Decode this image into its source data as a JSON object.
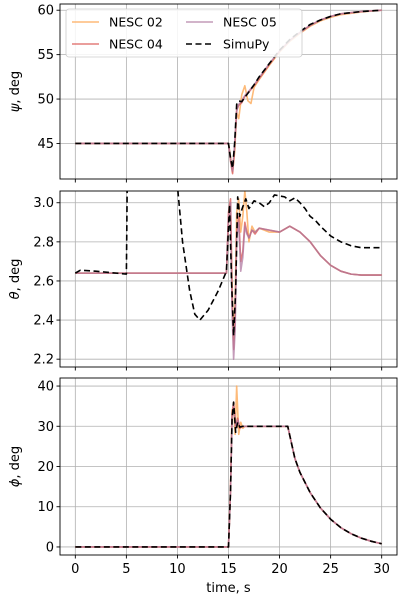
{
  "chart_data": {
    "type": "line",
    "xlabel": "time, s",
    "x_ticks": [
      0,
      5,
      10,
      15,
      20,
      25,
      30
    ],
    "xlim": [
      -1.5,
      31.5
    ],
    "series_styles": [
      {
        "name": "NESC 02",
        "color": "#fdae61",
        "alpha": 0.85,
        "dash": ""
      },
      {
        "name": "NESC 04",
        "color": "#d9534f",
        "alpha": 0.75,
        "dash": ""
      },
      {
        "name": "NESC 05",
        "color": "#b07aa1",
        "alpha": 0.75,
        "dash": ""
      },
      {
        "name": "SimuPy",
        "color": "#000000",
        "alpha": 1.0,
        "dash": "6,3.5"
      }
    ],
    "legend": {
      "placement": "top-left",
      "columns": 2,
      "entries": [
        "NESC 02",
        "NESC 04",
        "NESC 05",
        "SimuPy"
      ]
    },
    "grid": true,
    "panels": [
      {
        "ylabel_var": "ψ",
        "ylabel_unit": ", deg",
        "ylim": [
          41,
          60.7
        ],
        "y_ticks": [
          45,
          50,
          55,
          60
        ],
        "show_xticklabels": false,
        "series": [
          {
            "name": "NESC 02",
            "x": [
              0,
              15,
              15.2,
              15.4,
              15.6,
              15.8,
              16.0,
              16.3,
              16.6,
              16.9,
              17.2,
              17.5,
              18,
              19,
              20,
              21,
              22,
              23,
              24,
              25,
              26,
              28,
              30
            ],
            "y": [
              45,
              45,
              43.5,
              41.8,
              44.0,
              48.5,
              47.8,
              50.5,
              51.5,
              49.8,
              49.5,
              51.3,
              52.2,
              53.8,
              55.3,
              56.5,
              57.4,
              58.2,
              58.8,
              59.2,
              59.5,
              59.8,
              60
            ]
          },
          {
            "name": "NESC 04",
            "x": [
              0,
              15,
              15.2,
              15.4,
              15.6,
              15.8,
              16.0,
              16.3,
              16.6,
              17.0,
              17.5,
              18,
              19,
              20,
              21,
              22,
              23,
              24,
              25,
              26,
              28,
              30
            ],
            "y": [
              45,
              45,
              43.0,
              41.6,
              44.5,
              48.8,
              49.3,
              49.6,
              50.3,
              50.8,
              51.5,
              52.3,
              53.9,
              55.4,
              56.6,
              57.5,
              58.3,
              58.9,
              59.3,
              59.6,
              59.85,
              60
            ]
          },
          {
            "name": "NESC 05",
            "x": [
              0,
              15,
              15.2,
              15.4,
              15.6,
              15.8,
              16.0,
              16.3,
              16.6,
              17.0,
              17.5,
              18,
              19,
              20,
              21,
              22,
              23,
              24,
              25,
              26,
              28,
              30
            ],
            "y": [
              45,
              45,
              43.2,
              41.9,
              44.8,
              48.6,
              49.4,
              49.8,
              50.4,
              50.9,
              51.6,
              52.4,
              54.0,
              55.4,
              56.6,
              57.5,
              58.3,
              58.9,
              59.3,
              59.6,
              59.85,
              60
            ]
          },
          {
            "name": "SimuPy",
            "x": [
              0,
              15,
              15.2,
              15.4,
              15.6,
              15.8,
              16.0,
              16.3,
              16.6,
              17.0,
              17.5,
              18,
              19,
              20,
              21,
              22,
              23,
              24,
              25,
              26,
              28,
              30
            ],
            "y": [
              45,
              45,
              43.3,
              42.2,
              45.0,
              49.4,
              49.8,
              49.7,
              50.2,
              50.8,
              51.6,
              52.5,
              54.0,
              55.5,
              56.7,
              57.6,
              58.4,
              58.9,
              59.3,
              59.6,
              59.85,
              60
            ]
          }
        ]
      },
      {
        "ylabel_var": "θ",
        "ylabel_unit": ", deg",
        "ylim": [
          2.16,
          3.06
        ],
        "y_ticks": [
          2.2,
          2.4,
          2.6,
          2.8,
          3.0
        ],
        "y_tick_format": 1,
        "show_xticklabels": false,
        "series": [
          {
            "name": "NESC 02",
            "x": [
              0,
              14.8,
              15.0,
              15.2,
              15.35,
              15.5,
              15.65,
              15.8,
              16.0,
              16.2,
              16.4,
              16.6,
              16.8,
              17.0,
              17.3,
              17.6,
              18,
              19,
              20,
              21,
              22,
              23,
              24,
              25,
              26,
              27,
              28,
              29,
              30
            ],
            "y": [
              2.64,
              2.64,
              2.9,
              3.0,
              2.6,
              2.3,
              2.5,
              2.95,
              3.02,
              2.85,
              2.93,
              3.06,
              2.95,
              2.8,
              2.88,
              2.85,
              2.87,
              2.85,
              2.85,
              2.88,
              2.85,
              2.8,
              2.73,
              2.68,
              2.65,
              2.635,
              2.63,
              2.63,
              2.63
            ]
          },
          {
            "name": "NESC 04",
            "x": [
              0,
              14.8,
              15.0,
              15.2,
              15.35,
              15.5,
              15.65,
              15.8,
              16.0,
              16.2,
              16.4,
              16.6,
              16.8,
              17.0,
              17.3,
              17.6,
              18,
              19,
              20,
              21,
              22,
              23,
              24,
              25,
              26,
              27,
              28,
              29,
              30
            ],
            "y": [
              2.64,
              2.64,
              2.95,
              3.02,
              2.5,
              2.25,
              2.4,
              2.85,
              2.93,
              2.7,
              2.75,
              2.9,
              2.85,
              2.82,
              2.86,
              2.84,
              2.87,
              2.86,
              2.85,
              2.88,
              2.85,
              2.8,
              2.73,
              2.68,
              2.65,
              2.635,
              2.63,
              2.63,
              2.63
            ]
          },
          {
            "name": "NESC 05",
            "x": [
              0,
              14.8,
              15.0,
              15.2,
              15.35,
              15.5,
              15.65,
              15.8,
              16.0,
              16.2,
              16.4,
              16.6,
              16.8,
              17.0,
              17.3,
              17.6,
              18,
              19,
              20,
              21,
              22,
              23,
              24,
              25,
              26,
              27,
              28,
              29,
              30
            ],
            "y": [
              2.64,
              2.64,
              2.92,
              3.0,
              2.45,
              2.2,
              2.35,
              2.82,
              2.9,
              2.65,
              2.72,
              2.88,
              2.84,
              2.82,
              2.86,
              2.85,
              2.87,
              2.86,
              2.85,
              2.88,
              2.85,
              2.8,
              2.73,
              2.68,
              2.65,
              2.635,
              2.63,
              2.63,
              2.63
            ]
          },
          {
            "name": "SimuPy",
            "x": [
              0,
              0.5,
              2,
              4,
              5,
              5.1,
              9.8,
              10.5,
              11.2,
              11.7,
              12.2,
              13,
              14,
              14.8,
              15.1,
              15.3,
              15.5,
              15.7,
              15.9,
              16.1,
              16.4,
              16.7,
              17,
              17.5,
              18,
              18.5,
              19,
              19.5,
              20,
              20.5,
              21,
              21.5,
              22,
              22.5,
              23,
              23.5,
              24,
              25,
              26,
              27,
              28,
              29,
              30
            ],
            "y": [
              2.64,
              2.655,
              2.65,
              2.64,
              2.635,
              3.2,
              3.2,
              2.8,
              2.55,
              2.43,
              2.4,
              2.45,
              2.55,
              2.65,
              2.99,
              2.6,
              2.32,
              2.55,
              3.03,
              2.93,
              2.98,
              3.02,
              2.97,
              3.01,
              3.0,
              2.98,
              3.0,
              3.04,
              3.035,
              3.03,
              3.01,
              3.025,
              3.0,
              2.97,
              2.93,
              2.91,
              2.88,
              2.83,
              2.8,
              2.78,
              2.77,
              2.77,
              2.77
            ]
          }
        ]
      },
      {
        "ylabel_var": "ϕ",
        "ylabel_unit": ", deg",
        "ylim": [
          -2,
          42
        ],
        "y_ticks": [
          0,
          10,
          20,
          30,
          40
        ],
        "show_xticklabels": true,
        "series": [
          {
            "name": "NESC 02",
            "x": [
              0,
              15,
              15.2,
              15.35,
              15.5,
              15.65,
              15.8,
              16.0,
              16.2,
              16.4,
              16.6,
              17,
              20.8,
              21.5,
              22,
              23,
              24,
              25,
              26,
              27,
              28,
              29,
              30
            ],
            "y": [
              0,
              0,
              15,
              34,
              35,
              28,
              40,
              28,
              31,
              29.5,
              30,
              30,
              30,
              22.0,
              18.5,
              13.5,
              9.7,
              6.9,
              4.8,
              3.3,
              2.2,
              1.4,
              0.8
            ]
          },
          {
            "name": "NESC 04",
            "x": [
              0,
              15,
              15.2,
              15.35,
              15.5,
              15.7,
              15.9,
              16.1,
              16.4,
              17,
              20.8,
              21.5,
              22,
              23,
              24,
              25,
              26,
              27,
              28,
              29,
              30
            ],
            "y": [
              0,
              0,
              14,
              33,
              36,
              30,
              32,
              29.5,
              30,
              30,
              30,
              22.0,
              18.5,
              13.5,
              9.7,
              6.9,
              4.8,
              3.3,
              2.2,
              1.4,
              0.8
            ]
          },
          {
            "name": "NESC 05",
            "x": [
              0,
              15,
              15.2,
              15.35,
              15.5,
              15.7,
              15.9,
              16.1,
              16.4,
              17,
              20.8,
              21.5,
              22,
              23,
              24,
              25,
              26,
              27,
              28,
              29,
              30
            ],
            "y": [
              0,
              0,
              14,
              32,
              35,
              30,
              31.5,
              29.8,
              30,
              30,
              30,
              22.0,
              18.5,
              13.5,
              9.7,
              6.9,
              4.8,
              3.3,
              2.2,
              1.4,
              0.8
            ]
          },
          {
            "name": "SimuPy",
            "x": [
              0,
              15,
              15.2,
              15.35,
              15.5,
              15.7,
              15.9,
              16.1,
              16.4,
              17,
              20.8,
              21.5,
              22,
              23,
              24,
              25,
              26,
              27,
              28,
              29,
              30
            ],
            "y": [
              0,
              0,
              14,
              32,
              36,
              28.5,
              31,
              29.8,
              30,
              30,
              30,
              22.0,
              18.5,
              13.5,
              9.7,
              6.9,
              4.8,
              3.3,
              2.2,
              1.4,
              0.8
            ]
          }
        ]
      }
    ]
  }
}
